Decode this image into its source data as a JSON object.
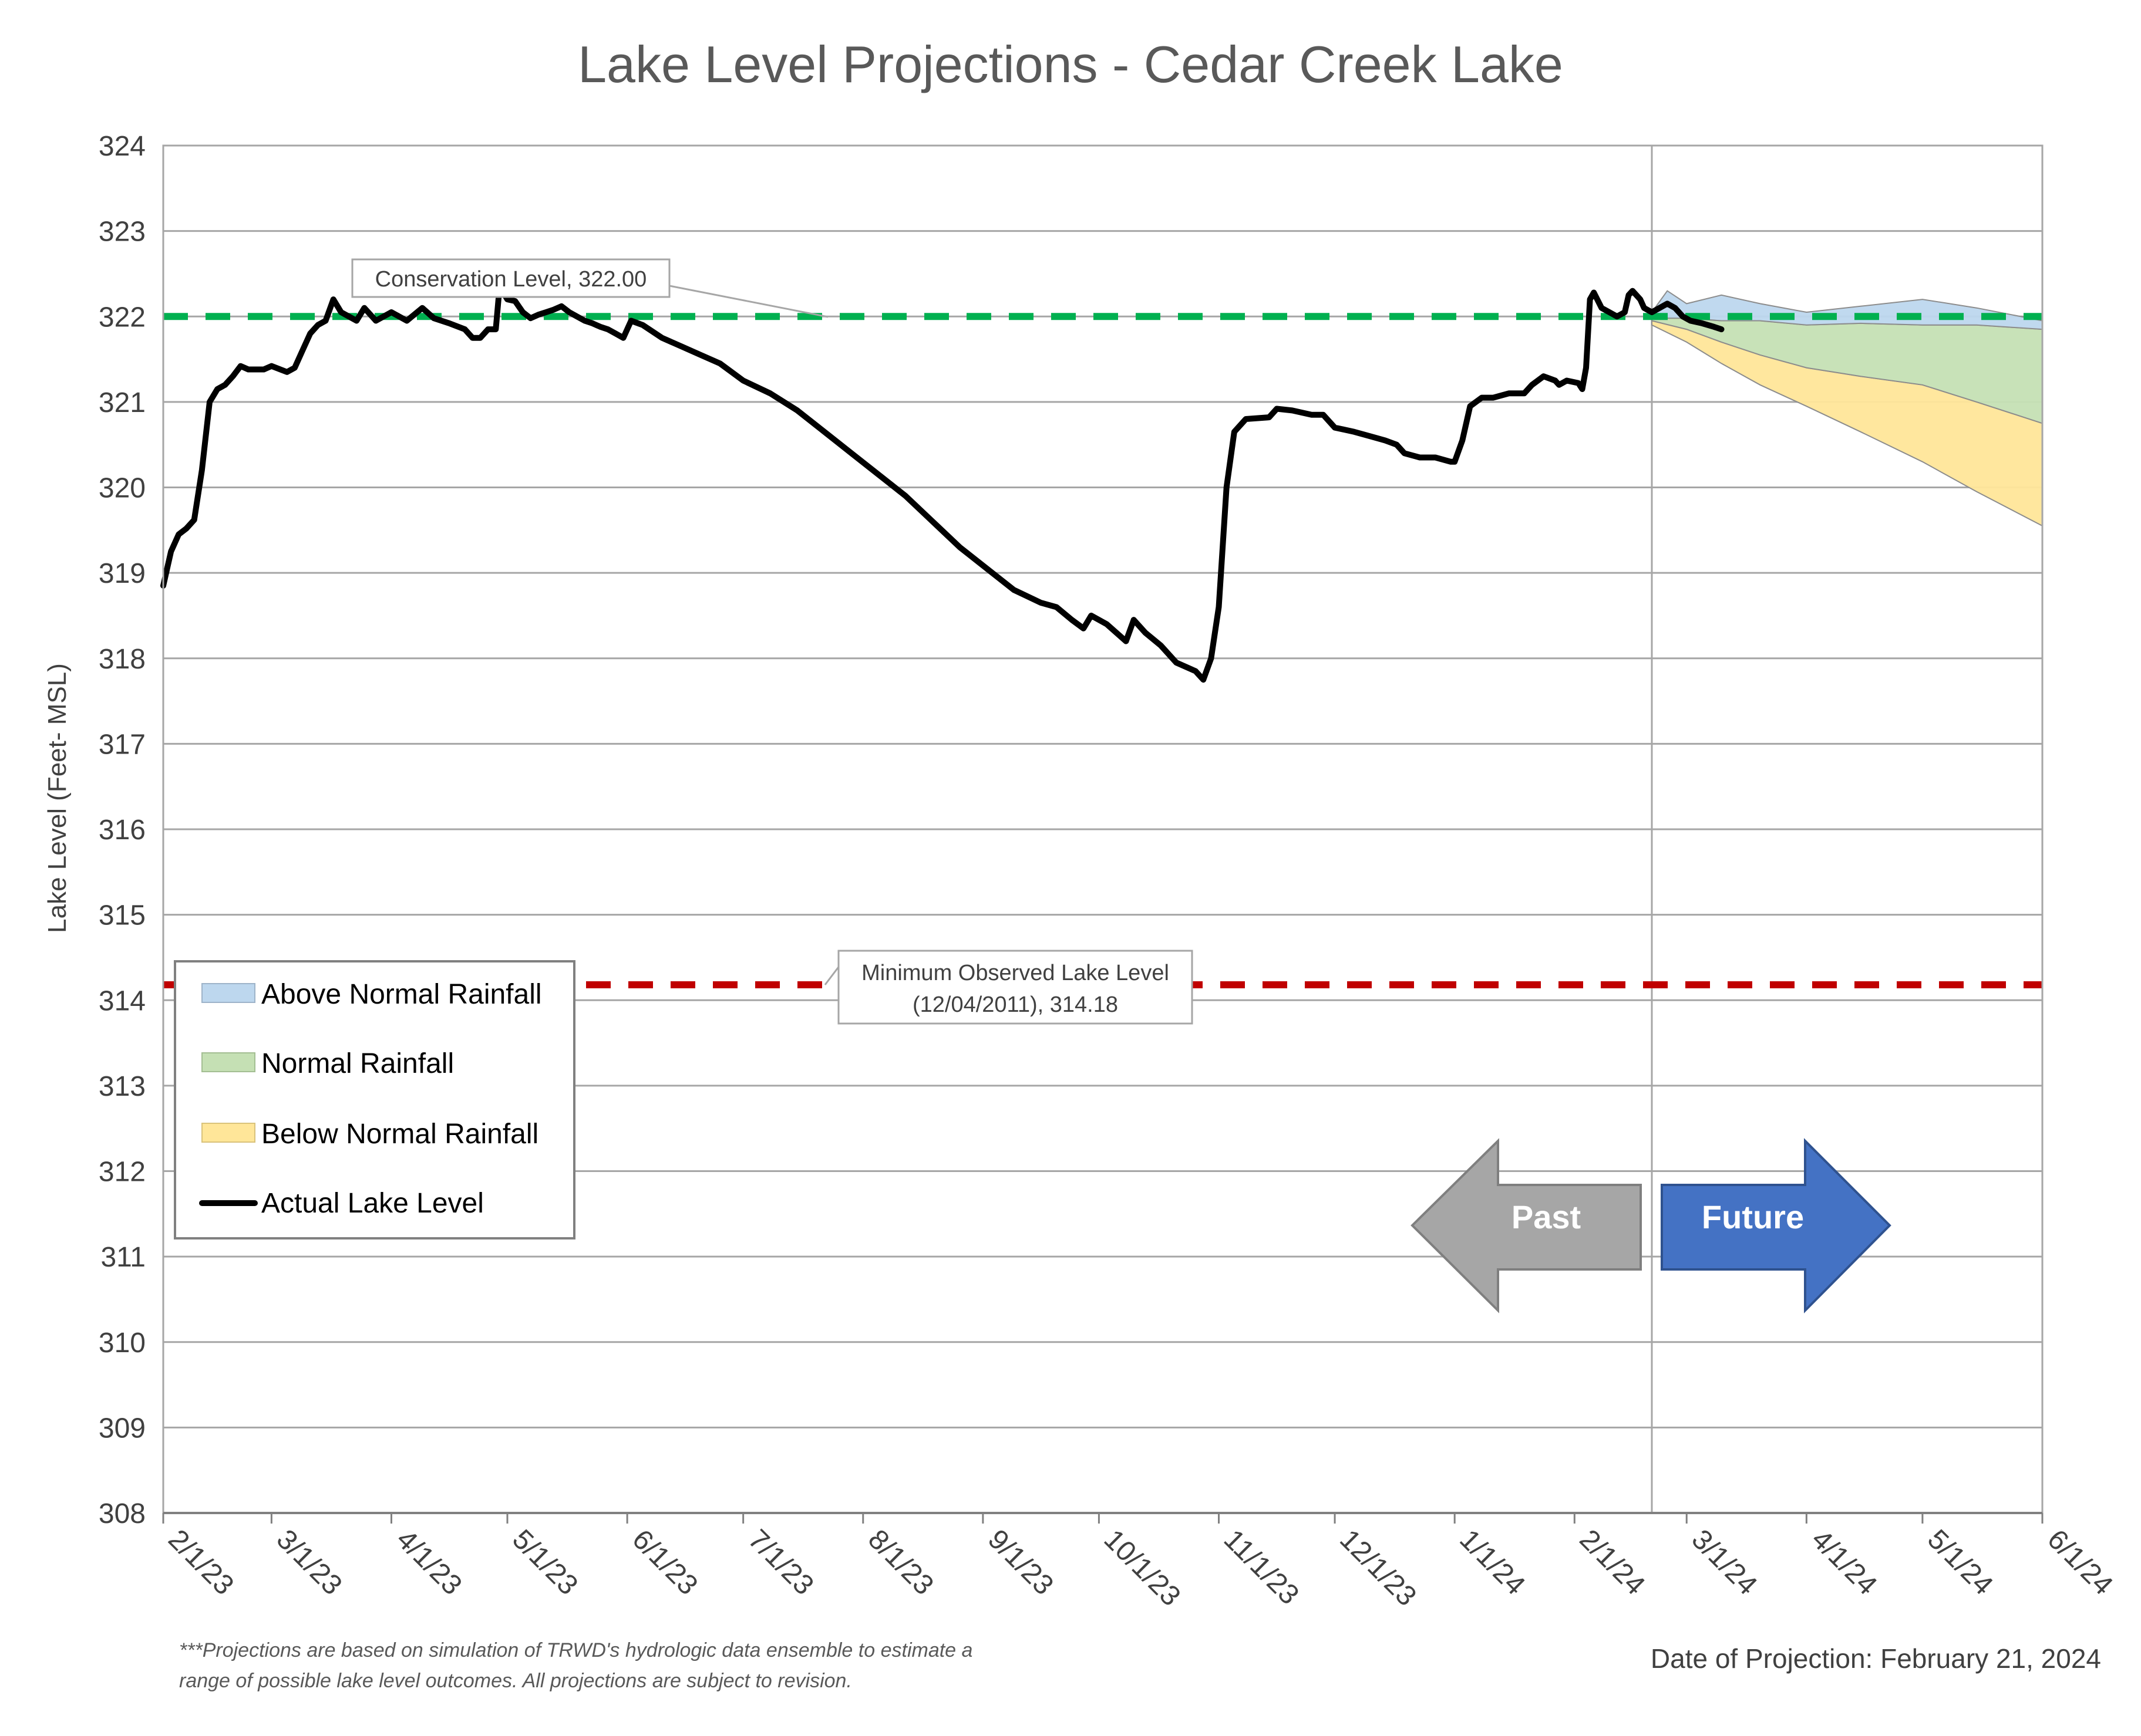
{
  "chart_data": {
    "type": "line",
    "title": "Lake Level Projections - Cedar Creek Lake",
    "ylabel": "Lake Level (Feet- MSL)",
    "xlabel": "",
    "ylim": [
      308,
      324
    ],
    "yticks": [
      "308",
      "309",
      "310",
      "311",
      "312",
      "313",
      "314",
      "315",
      "316",
      "317",
      "318",
      "319",
      "320",
      "321",
      "322",
      "323",
      "324"
    ],
    "xlim": [
      "2023-02-01",
      "2024-06-01"
    ],
    "xticks": [
      {
        "date": "2023-02-01",
        "label": "2/1/23"
      },
      {
        "date": "2023-03-01",
        "label": "3/1/23"
      },
      {
        "date": "2023-04-01",
        "label": "4/1/23"
      },
      {
        "date": "2023-05-01",
        "label": "5/1/23"
      },
      {
        "date": "2023-06-01",
        "label": "6/1/23"
      },
      {
        "date": "2023-07-01",
        "label": "7/1/23"
      },
      {
        "date": "2023-08-01",
        "label": "8/1/23"
      },
      {
        "date": "2023-09-01",
        "label": "9/1/23"
      },
      {
        "date": "2023-10-01",
        "label": "10/1/23"
      },
      {
        "date": "2023-11-01",
        "label": "11/1/23"
      },
      {
        "date": "2023-12-01",
        "label": "12/1/23"
      },
      {
        "date": "2024-01-01",
        "label": "1/1/24"
      },
      {
        "date": "2024-02-01",
        "label": "2/1/24"
      },
      {
        "date": "2024-03-01",
        "label": "3/1/24"
      },
      {
        "date": "2024-04-01",
        "label": "4/1/24"
      },
      {
        "date": "2024-05-01",
        "label": "5/1/24"
      },
      {
        "date": "2024-06-01",
        "label": "6/1/24"
      }
    ],
    "grid": true,
    "legend_position": "bottom-left",
    "legend": [
      {
        "label": "Above Normal Rainfall",
        "kind": "area",
        "color": "#BDD7EE"
      },
      {
        "label": "Normal Rainfall",
        "kind": "area",
        "color": "#C5E0B4"
      },
      {
        "label": "Below Normal Rainfall",
        "kind": "area",
        "color": "#FFE699"
      },
      {
        "label": "Actual Lake Level",
        "kind": "line",
        "color": "#000000"
      }
    ],
    "reference_lines": [
      {
        "name": "conservation",
        "value": 322.0,
        "color": "#00B050",
        "label": "Conservation Level, 322.00"
      },
      {
        "name": "minimum",
        "value": 314.18,
        "color": "#C00000",
        "label_lines": [
          "Minimum Observed Lake Level",
          "(12/04/2011), 314.18"
        ]
      }
    ],
    "projection_date": "2024-02-21",
    "series": [
      {
        "name": "Actual Lake Level",
        "color": "#000000",
        "points": [
          [
            "2023-02-01",
            318.85
          ],
          [
            "2023-02-03",
            319.25
          ],
          [
            "2023-02-05",
            319.45
          ],
          [
            "2023-02-07",
            319.52
          ],
          [
            "2023-02-09",
            319.62
          ],
          [
            "2023-02-11",
            320.2
          ],
          [
            "2023-02-13",
            321.0
          ],
          [
            "2023-02-15",
            321.15
          ],
          [
            "2023-02-17",
            321.2
          ],
          [
            "2023-02-19",
            321.3
          ],
          [
            "2023-02-21",
            321.42
          ],
          [
            "2023-02-23",
            321.38
          ],
          [
            "2023-02-27",
            321.38
          ],
          [
            "2023-03-01",
            321.42
          ],
          [
            "2023-03-05",
            321.35
          ],
          [
            "2023-03-07",
            321.4
          ],
          [
            "2023-03-09",
            321.6
          ],
          [
            "2023-03-11",
            321.8
          ],
          [
            "2023-03-13",
            321.9
          ],
          [
            "2023-03-15",
            321.95
          ],
          [
            "2023-03-17",
            322.2
          ],
          [
            "2023-03-19",
            322.05
          ],
          [
            "2023-03-23",
            321.95
          ],
          [
            "2023-03-25",
            322.1
          ],
          [
            "2023-03-28",
            321.95
          ],
          [
            "2023-04-01",
            322.05
          ],
          [
            "2023-04-05",
            321.95
          ],
          [
            "2023-04-09",
            322.1
          ],
          [
            "2023-04-12",
            321.98
          ],
          [
            "2023-04-16",
            321.92
          ],
          [
            "2023-04-20",
            321.85
          ],
          [
            "2023-04-22",
            321.75
          ],
          [
            "2023-04-24",
            321.75
          ],
          [
            "2023-04-26",
            321.85
          ],
          [
            "2023-04-28",
            321.85
          ],
          [
            "2023-04-29",
            322.35
          ],
          [
            "2023-05-01",
            322.2
          ],
          [
            "2023-05-03",
            322.18
          ],
          [
            "2023-05-05",
            322.05
          ],
          [
            "2023-05-07",
            321.98
          ],
          [
            "2023-05-09",
            322.02
          ],
          [
            "2023-05-11",
            322.05
          ],
          [
            "2023-05-13",
            322.08
          ],
          [
            "2023-05-15",
            322.12
          ],
          [
            "2023-05-17",
            322.05
          ],
          [
            "2023-05-19",
            322.0
          ],
          [
            "2023-05-21",
            321.95
          ],
          [
            "2023-05-23",
            321.92
          ],
          [
            "2023-05-25",
            321.88
          ],
          [
            "2023-05-27",
            321.85
          ],
          [
            "2023-05-29",
            321.8
          ],
          [
            "2023-05-31",
            321.75
          ],
          [
            "2023-06-02",
            321.95
          ],
          [
            "2023-06-05",
            321.9
          ],
          [
            "2023-06-10",
            321.75
          ],
          [
            "2023-06-15",
            321.65
          ],
          [
            "2023-06-20",
            321.55
          ],
          [
            "2023-06-25",
            321.45
          ],
          [
            "2023-07-01",
            321.25
          ],
          [
            "2023-07-08",
            321.1
          ],
          [
            "2023-07-15",
            320.9
          ],
          [
            "2023-07-22",
            320.65
          ],
          [
            "2023-07-29",
            320.4
          ],
          [
            "2023-08-05",
            320.15
          ],
          [
            "2023-08-12",
            319.9
          ],
          [
            "2023-08-19",
            319.6
          ],
          [
            "2023-08-26",
            319.3
          ],
          [
            "2023-09-02",
            319.05
          ],
          [
            "2023-09-09",
            318.8
          ],
          [
            "2023-09-16",
            318.65
          ],
          [
            "2023-09-20",
            318.6
          ],
          [
            "2023-09-24",
            318.45
          ],
          [
            "2023-09-27",
            318.35
          ],
          [
            "2023-09-29",
            318.5
          ],
          [
            "2023-10-03",
            318.4
          ],
          [
            "2023-10-08",
            318.2
          ],
          [
            "2023-10-10",
            318.45
          ],
          [
            "2023-10-13",
            318.3
          ],
          [
            "2023-10-17",
            318.15
          ],
          [
            "2023-10-21",
            317.95
          ],
          [
            "2023-10-26",
            317.85
          ],
          [
            "2023-10-28",
            317.75
          ],
          [
            "2023-10-30",
            318.0
          ],
          [
            "2023-11-01",
            318.6
          ],
          [
            "2023-11-03",
            320.0
          ],
          [
            "2023-11-05",
            320.65
          ],
          [
            "2023-11-08",
            320.8
          ],
          [
            "2023-11-14",
            320.82
          ],
          [
            "2023-11-16",
            320.92
          ],
          [
            "2023-11-20",
            320.9
          ],
          [
            "2023-11-25",
            320.85
          ],
          [
            "2023-11-28",
            320.85
          ],
          [
            "2023-12-01",
            320.7
          ],
          [
            "2023-12-06",
            320.65
          ],
          [
            "2023-12-10",
            320.6
          ],
          [
            "2023-12-14",
            320.55
          ],
          [
            "2023-12-17",
            320.5
          ],
          [
            "2023-12-19",
            320.4
          ],
          [
            "2023-12-23",
            320.35
          ],
          [
            "2023-12-27",
            320.35
          ],
          [
            "2023-12-31",
            320.3
          ],
          [
            "2024-01-01",
            320.3
          ],
          [
            "2024-01-03",
            320.55
          ],
          [
            "2024-01-05",
            320.95
          ],
          [
            "2024-01-08",
            321.05
          ],
          [
            "2024-01-11",
            321.05
          ],
          [
            "2024-01-15",
            321.1
          ],
          [
            "2024-01-19",
            321.1
          ],
          [
            "2024-01-21",
            321.2
          ],
          [
            "2024-01-24",
            321.3
          ],
          [
            "2024-01-27",
            321.25
          ],
          [
            "2024-01-28",
            321.2
          ],
          [
            "2024-01-30",
            321.25
          ],
          [
            "2024-02-02",
            321.22
          ],
          [
            "2024-02-03",
            321.15
          ],
          [
            "2024-02-04",
            321.4
          ],
          [
            "2024-02-05",
            322.2
          ],
          [
            "2024-02-06",
            322.28
          ],
          [
            "2024-02-08",
            322.1
          ],
          [
            "2024-02-10",
            322.05
          ],
          [
            "2024-02-12",
            322.0
          ],
          [
            "2024-02-14",
            322.05
          ],
          [
            "2024-02-15",
            322.25
          ],
          [
            "2024-02-16",
            322.3
          ],
          [
            "2024-02-18",
            322.2
          ],
          [
            "2024-02-19",
            322.1
          ],
          [
            "2024-02-21",
            322.05
          ],
          [
            "2024-02-23",
            322.1
          ],
          [
            "2024-02-25",
            322.15
          ],
          [
            "2024-02-27",
            322.1
          ],
          [
            "2024-02-29",
            322.0
          ],
          [
            "2024-03-02",
            321.95
          ],
          [
            "2024-03-05",
            321.92
          ],
          [
            "2024-03-08",
            321.88
          ],
          [
            "2024-03-10",
            321.85
          ]
        ]
      }
    ],
    "projection_bands": [
      {
        "name": "Above Normal Rainfall",
        "color": "#BDD7EE",
        "x": [
          "2024-02-21",
          "2024-02-25",
          "2024-03-01",
          "2024-03-10",
          "2024-03-20",
          "2024-04-01",
          "2024-04-15",
          "2024-05-01",
          "2024-05-15",
          "2024-06-01"
        ],
        "upper": [
          322.05,
          322.3,
          322.15,
          322.25,
          322.15,
          322.05,
          322.12,
          322.2,
          322.1,
          321.95
        ],
        "lower": [
          322.0,
          321.98,
          321.98,
          321.95,
          321.95,
          321.9,
          321.92,
          321.9,
          321.9,
          321.85
        ]
      },
      {
        "name": "Normal Rainfall",
        "color": "#C5E0B4",
        "x": [
          "2024-02-21",
          "2024-03-01",
          "2024-03-10",
          "2024-03-20",
          "2024-04-01",
          "2024-04-15",
          "2024-05-01",
          "2024-05-15",
          "2024-06-01"
        ],
        "upper": [
          322.0,
          321.98,
          321.95,
          321.95,
          321.9,
          321.92,
          321.9,
          321.9,
          321.85
        ],
        "lower": [
          321.95,
          321.85,
          321.7,
          321.55,
          321.4,
          321.3,
          321.2,
          321.0,
          320.75
        ]
      },
      {
        "name": "Below Normal Rainfall",
        "color": "#FFE699",
        "x": [
          "2024-02-21",
          "2024-03-01",
          "2024-03-10",
          "2024-03-20",
          "2024-04-01",
          "2024-04-15",
          "2024-05-01",
          "2024-05-15",
          "2024-06-01"
        ],
        "upper": [
          321.95,
          321.85,
          321.7,
          321.55,
          321.4,
          321.3,
          321.2,
          321.0,
          320.75
        ],
        "lower": [
          321.9,
          321.7,
          321.45,
          321.2,
          320.95,
          320.65,
          320.3,
          319.95,
          319.55
        ]
      }
    ],
    "annotations": {
      "past_label": "Past",
      "future_label": "Future",
      "footnote_line1": "***Projections are based on simulation of TRWD's hydrologic data ensemble to estimate a",
      "footnote_line2": "range of possible lake level outcomes.  All projections are subject to revision.",
      "projection_date_text": "Date of Projection: February 21, 2024"
    }
  }
}
